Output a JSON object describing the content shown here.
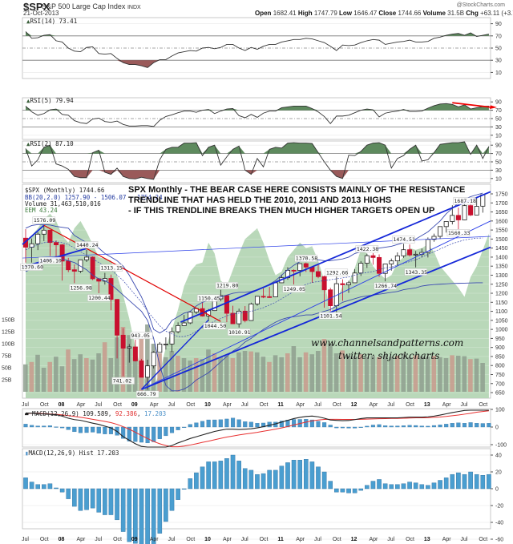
{
  "header": {
    "symbol": "$SPX",
    "name": "S&P 500 Large Cap Index",
    "exchange": "INDX",
    "date": "21-Oct-2013",
    "copyright": "@StockCharts.com",
    "open_label": "Open",
    "open": "1682.41",
    "high_label": "High",
    "high": "1747.79",
    "low_label": "Low",
    "low": "1646.47",
    "close_label": "Close",
    "close": "1744.66",
    "volume_label": "Volume",
    "volume": "31.5B",
    "chg_label": "Chg",
    "chg": "+63.11 (+3.75%)"
  },
  "panels": {
    "rsi14": {
      "label": "RSI(14) 73.41",
      "ticks": [
        "90",
        "70",
        "50",
        "30",
        "10"
      ]
    },
    "rsi5": {
      "label": "RSI(5) 79.94",
      "ticks": [
        "90",
        "70",
        "50",
        "30",
        "10"
      ]
    },
    "rsi2": {
      "label": "RSI(2) 87.10",
      "ticks": [
        "90",
        "70",
        "50",
        "30",
        "10"
      ]
    },
    "price": {
      "title": "$SPX (Monthly) 1744.66",
      "bb": "BB(20,2.0) 1257.90 - 1506.07 - 1754.24",
      "volume": "Volume 31,463,510,016",
      "eem": "EEM 43.24",
      "ticks": [
        "1750",
        "1700",
        "1650",
        "1600",
        "1550",
        "1500",
        "1450",
        "1400",
        "1350",
        "1300",
        "1250",
        "1200",
        "1150",
        "1100",
        "1050",
        "1000",
        "950",
        "900",
        "850",
        "800",
        "750",
        "700",
        "650"
      ],
      "vol_ticks": [
        "150B",
        "125B",
        "100B",
        "75B",
        "50B",
        "25B"
      ]
    },
    "macd": {
      "label": "MACD(12,26,9)",
      "v1": "109.589",
      "v2": "92.386",
      "v3": "17.203",
      "ticks": [
        "100",
        "0",
        "-100"
      ]
    },
    "hist": {
      "label": "MACD(12,26,9) Hist 17.203",
      "ticks": [
        "40",
        "20",
        "0",
        "-20",
        "-40",
        "-60"
      ]
    }
  },
  "annotation": {
    "line1": "SPX Monthly - THE BEAR CASE HERE CONSISTS MAINLY OF THE RESISTANCE",
    "line2": "TRENDLINE THAT HAS HELD THE 2010, 2011 AND 2013 HIGHS",
    "line3": "- IF THIS TRENDLINE BREAKS THEN MUCH HIGHER TARGETS OPEN UP"
  },
  "watermark": {
    "site": "www.channelsandpatterns.com",
    "twitter": "twitter: shjackcharts"
  },
  "x_axis": [
    "Jul",
    "Oct",
    "08",
    "Apr",
    "Jul",
    "Oct",
    "09",
    "Apr",
    "Jul",
    "Oct",
    "10",
    "Apr",
    "Jul",
    "Oct",
    "11",
    "Apr",
    "Jul",
    "Oct",
    "12",
    "Apr",
    "Jul",
    "Oct",
    "13",
    "Apr",
    "Jul",
    "Oct"
  ],
  "chart_data": {
    "type": "candlestick",
    "title": "$SPX (Monthly) 1744.66",
    "period": "Jul 2007 - Oct 2013",
    "price_labels": [
      {
        "label": "1576.09",
        "type": "high",
        "date": "Oct 2007"
      },
      {
        "label": "1370.60",
        "type": "low",
        "date": "Aug 2007"
      },
      {
        "label": "1406.10",
        "type": "low",
        "date": "Nov 2007"
      },
      {
        "label": "1440.24",
        "type": "high",
        "date": "May 2008"
      },
      {
        "label": "1256.98",
        "type": "low",
        "date": "Mar 2008"
      },
      {
        "label": "1313.15",
        "type": "high",
        "date": "Aug 2008"
      },
      {
        "label": "1200.44",
        "type": "low",
        "date": "Jul 2008"
      },
      {
        "label": "943.05",
        "type": "high",
        "date": "Jan 2009"
      },
      {
        "label": "741.02",
        "type": "low",
        "date": "Nov 2008"
      },
      {
        "label": "666.79",
        "type": "low",
        "date": "Mar 2009"
      },
      {
        "label": "1150.45",
        "type": "high",
        "date": "Jan 2010"
      },
      {
        "label": "1044.50",
        "type": "low",
        "date": "Feb 2010"
      },
      {
        "label": "1219.80",
        "type": "high",
        "date": "Apr 2010"
      },
      {
        "label": "1010.91",
        "type": "low",
        "date": "Jul 2010"
      },
      {
        "label": "1370.58",
        "type": "high",
        "date": "May 2011"
      },
      {
        "label": "1249.05",
        "type": "low",
        "date": "Mar 2011"
      },
      {
        "label": "1292.66",
        "type": "high",
        "date": "Oct 2011"
      },
      {
        "label": "1101.54",
        "type": "low",
        "date": "Oct 2011"
      },
      {
        "label": "1422.38",
        "type": "high",
        "date": "Apr 2012"
      },
      {
        "label": "1266.74",
        "type": "low",
        "date": "Jun 2012"
      },
      {
        "label": "1474.51",
        "type": "high",
        "date": "Sep 2012"
      },
      {
        "label": "1343.35",
        "type": "low",
        "date": "Nov 2012"
      },
      {
        "label": "1687.18",
        "type": "high",
        "date": "Aug 2013"
      },
      {
        "label": "1560.33",
        "type": "low",
        "date": "Jun 2013"
      }
    ],
    "indicators": {
      "RSI14": 73.41,
      "RSI5": 79.94,
      "RSI2": 87.1,
      "BB": {
        "lower": 1257.9,
        "mid": 1506.07,
        "upper": 1754.24
      },
      "MACD": {
        "macd": 109.589,
        "signal": 92.386,
        "hist": 17.203
      },
      "EEM": 43.24,
      "Volume": 31463510016
    },
    "macd_hist_approx": [
      13,
      8,
      5,
      5,
      6,
      1,
      -4,
      -12,
      -21,
      -26,
      -25,
      -23,
      -28,
      -31,
      -31,
      -37,
      -51,
      -63,
      -65,
      -68,
      -71,
      -66,
      -53,
      -39,
      -26,
      -13,
      0,
      12,
      19,
      26,
      32,
      32,
      33,
      36,
      40,
      33,
      24,
      22,
      17,
      18,
      22,
      22,
      27,
      31,
      34,
      34,
      35,
      32,
      26,
      20,
      9,
      -4,
      -4,
      -5,
      -5,
      -2,
      4,
      9,
      11,
      6,
      5,
      5,
      6,
      8,
      7,
      5,
      4,
      7,
      10,
      13,
      17,
      19,
      17,
      20,
      17,
      16,
      17
    ],
    "ylim": [
      650,
      1750
    ],
    "xlabel": "",
    "ylabel": ""
  }
}
